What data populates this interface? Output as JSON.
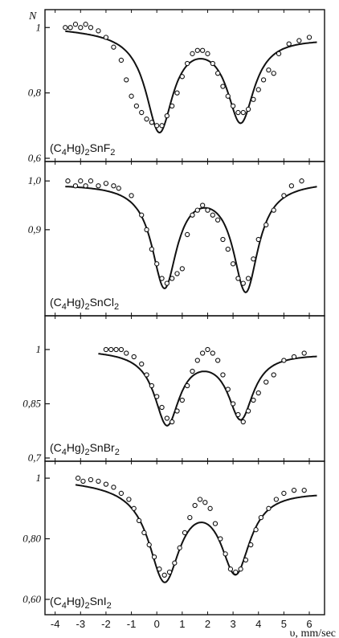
{
  "chart_data": {
    "type": "scatter",
    "ylabel": "N",
    "xlabel": "υ, mm/sec",
    "xlim": [
      -4.4,
      6.6
    ],
    "x_ticks": [
      -4,
      -3,
      -2,
      -1,
      0,
      1,
      2,
      3,
      4,
      5,
      6
    ],
    "x_tick_labels": [
      "-4",
      "-3",
      "-2",
      "-1",
      "0",
      "1",
      "2",
      "3",
      "4",
      "5",
      "6"
    ],
    "panels": [
      {
        "label": "(C4Hg)2SnF2",
        "formula": {
          "a": "(C",
          "b": "4",
          "c": "Hg)",
          "d": "2",
          "e": "SnF",
          "f": "2"
        },
        "ylim": [
          0.6,
          1.04
        ],
        "y_ticks": [
          1.0,
          0.8,
          0.6
        ],
        "y_tick_labels": [
          "1",
          "0,8",
          "0,6"
        ],
        "baseline": 1.0,
        "dips": [
          {
            "center": 0.1,
            "depth": 0.3,
            "width": 0.65
          },
          {
            "center": 3.3,
            "depth": 0.26,
            "width": 0.65
          }
        ],
        "end_level": 0.97,
        "curve_x_range": [
          -3.6,
          6.3
        ],
        "points": [
          [
            -3.6,
            1.0
          ],
          [
            -3.4,
            1.0
          ],
          [
            -3.2,
            1.01
          ],
          [
            -3.0,
            1.0
          ],
          [
            -2.8,
            1.01
          ],
          [
            -2.6,
            1.0
          ],
          [
            -2.3,
            0.99
          ],
          [
            -2.0,
            0.97
          ],
          [
            -1.7,
            0.94
          ],
          [
            -1.4,
            0.9
          ],
          [
            -1.2,
            0.84
          ],
          [
            -1.0,
            0.79
          ],
          [
            -0.8,
            0.76
          ],
          [
            -0.6,
            0.74
          ],
          [
            -0.4,
            0.72
          ],
          [
            -0.2,
            0.71
          ],
          [
            0.0,
            0.7
          ],
          [
            0.2,
            0.7
          ],
          [
            0.4,
            0.73
          ],
          [
            0.6,
            0.76
          ],
          [
            0.8,
            0.8
          ],
          [
            1.0,
            0.85
          ],
          [
            1.2,
            0.89
          ],
          [
            1.4,
            0.92
          ],
          [
            1.6,
            0.93
          ],
          [
            1.8,
            0.93
          ],
          [
            2.0,
            0.92
          ],
          [
            2.2,
            0.89
          ],
          [
            2.4,
            0.86
          ],
          [
            2.6,
            0.82
          ],
          [
            2.8,
            0.79
          ],
          [
            3.0,
            0.76
          ],
          [
            3.2,
            0.74
          ],
          [
            3.4,
            0.74
          ],
          [
            3.6,
            0.75
          ],
          [
            3.8,
            0.78
          ],
          [
            4.0,
            0.81
          ],
          [
            4.2,
            0.84
          ],
          [
            4.4,
            0.87
          ],
          [
            4.6,
            0.86
          ],
          [
            4.8,
            0.92
          ],
          [
            5.2,
            0.95
          ],
          [
            5.6,
            0.96
          ],
          [
            6.0,
            0.97
          ]
        ]
      },
      {
        "label": "(C4Hg)2SnCl2",
        "formula": {
          "a": "(C",
          "b": "4",
          "c": "Hg)",
          "d": "2",
          "e": "SnCl",
          "f": "2"
        },
        "ylim": [
          0.73,
          1.03
        ],
        "y_ticks": [
          1.0,
          0.9
        ],
        "y_tick_labels": [
          "1,0",
          "0,9"
        ],
        "baseline": 0.995,
        "dips": [
          {
            "center": 0.3,
            "depth": 0.21,
            "width": 0.6
          },
          {
            "center": 3.5,
            "depth": 0.22,
            "width": 0.6
          }
        ],
        "end_level": 1.0,
        "curve_x_range": [
          -3.6,
          6.3
        ],
        "points": [
          [
            -3.5,
            1.0
          ],
          [
            -3.2,
            0.99
          ],
          [
            -3.0,
            1.0
          ],
          [
            -2.8,
            0.99
          ],
          [
            -2.6,
            1.0
          ],
          [
            -2.3,
            0.99
          ],
          [
            -2.0,
            0.995
          ],
          [
            -1.7,
            0.99
          ],
          [
            -1.5,
            0.985
          ],
          [
            -1.0,
            0.97
          ],
          [
            -0.6,
            0.93
          ],
          [
            -0.4,
            0.9
          ],
          [
            -0.2,
            0.86
          ],
          [
            0.0,
            0.83
          ],
          [
            0.2,
            0.8
          ],
          [
            0.4,
            0.79
          ],
          [
            0.6,
            0.8
          ],
          [
            0.8,
            0.81
          ],
          [
            1.0,
            0.82
          ],
          [
            1.2,
            0.89
          ],
          [
            1.4,
            0.93
          ],
          [
            1.6,
            0.94
          ],
          [
            1.8,
            0.95
          ],
          [
            2.0,
            0.94
          ],
          [
            2.2,
            0.93
          ],
          [
            2.4,
            0.92
          ],
          [
            2.6,
            0.88
          ],
          [
            2.8,
            0.86
          ],
          [
            3.0,
            0.83
          ],
          [
            3.2,
            0.8
          ],
          [
            3.4,
            0.79
          ],
          [
            3.6,
            0.8
          ],
          [
            3.8,
            0.84
          ],
          [
            4.0,
            0.88
          ],
          [
            4.3,
            0.91
          ],
          [
            4.6,
            0.94
          ],
          [
            5.0,
            0.97
          ],
          [
            5.3,
            0.99
          ],
          [
            5.7,
            1.0
          ]
        ]
      },
      {
        "label": "(C4Hg)2SnBr2",
        "formula": {
          "a": "(C",
          "b": "4",
          "c": "Hg)",
          "d": "2",
          "e": "SnBr",
          "f": "2"
        },
        "ylim": [
          0.7,
          1.08
        ],
        "y_ticks": [
          1.0,
          0.85,
          0.7
        ],
        "y_tick_labels": [
          "1",
          "0,85",
          "0,7"
        ],
        "baseline": 1.0,
        "dips": [
          {
            "center": 0.4,
            "depth": 0.2,
            "width": 0.6
          },
          {
            "center": 3.3,
            "depth": 0.18,
            "width": 0.6
          }
        ],
        "end_level": 0.99,
        "curve_x_range": [
          -2.3,
          6.3
        ],
        "points": [
          [
            -2.0,
            1.0
          ],
          [
            -1.8,
            1.0
          ],
          [
            -1.6,
            1.0
          ],
          [
            -1.4,
            1.0
          ],
          [
            -1.2,
            0.99
          ],
          [
            -0.9,
            0.98
          ],
          [
            -0.6,
            0.96
          ],
          [
            -0.4,
            0.93
          ],
          [
            -0.2,
            0.9
          ],
          [
            0.0,
            0.87
          ],
          [
            0.2,
            0.84
          ],
          [
            0.4,
            0.81
          ],
          [
            0.6,
            0.8
          ],
          [
            0.8,
            0.83
          ],
          [
            1.0,
            0.86
          ],
          [
            1.2,
            0.9
          ],
          [
            1.4,
            0.94
          ],
          [
            1.6,
            0.97
          ],
          [
            1.8,
            0.99
          ],
          [
            2.0,
            1.0
          ],
          [
            2.2,
            0.99
          ],
          [
            2.4,
            0.97
          ],
          [
            2.6,
            0.93
          ],
          [
            2.8,
            0.89
          ],
          [
            3.0,
            0.85
          ],
          [
            3.2,
            0.82
          ],
          [
            3.4,
            0.8
          ],
          [
            3.6,
            0.83
          ],
          [
            3.8,
            0.86
          ],
          [
            4.0,
            0.88
          ],
          [
            4.3,
            0.91
          ],
          [
            4.6,
            0.93
          ],
          [
            5.0,
            0.97
          ],
          [
            5.4,
            0.98
          ],
          [
            5.8,
            0.99
          ]
        ]
      },
      {
        "label": "(C4Hg)2SnI2",
        "formula": {
          "a": "(C",
          "b": "4",
          "c": "Hg)",
          "d": "2",
          "e": "SnI",
          "f": "2"
        },
        "ylim": [
          0.56,
          1.04
        ],
        "y_ticks": [
          1.0,
          0.8,
          0.6
        ],
        "y_tick_labels": [
          "1",
          "0,80",
          "0,60"
        ],
        "baseline": 0.995,
        "dips": [
          {
            "center": 0.3,
            "depth": 0.31,
            "width": 0.75
          },
          {
            "center": 3.1,
            "depth": 0.27,
            "width": 0.7
          }
        ],
        "end_level": 0.96,
        "curve_x_range": [
          -3.2,
          6.3
        ],
        "points": [
          [
            -3.1,
            1.0
          ],
          [
            -2.9,
            0.99
          ],
          [
            -2.6,
            0.995
          ],
          [
            -2.3,
            0.99
          ],
          [
            -2.0,
            0.98
          ],
          [
            -1.7,
            0.97
          ],
          [
            -1.4,
            0.95
          ],
          [
            -1.1,
            0.93
          ],
          [
            -0.9,
            0.9
          ],
          [
            -0.7,
            0.86
          ],
          [
            -0.5,
            0.82
          ],
          [
            -0.3,
            0.78
          ],
          [
            -0.1,
            0.74
          ],
          [
            0.1,
            0.7
          ],
          [
            0.3,
            0.68
          ],
          [
            0.5,
            0.69
          ],
          [
            0.7,
            0.72
          ],
          [
            0.9,
            0.77
          ],
          [
            1.1,
            0.82
          ],
          [
            1.3,
            0.87
          ],
          [
            1.5,
            0.91
          ],
          [
            1.7,
            0.93
          ],
          [
            1.9,
            0.92
          ],
          [
            2.1,
            0.9
          ],
          [
            2.3,
            0.85
          ],
          [
            2.5,
            0.8
          ],
          [
            2.7,
            0.75
          ],
          [
            2.9,
            0.7
          ],
          [
            3.1,
            0.69
          ],
          [
            3.3,
            0.7
          ],
          [
            3.5,
            0.73
          ],
          [
            3.7,
            0.78
          ],
          [
            3.9,
            0.83
          ],
          [
            4.1,
            0.87
          ],
          [
            4.4,
            0.9
          ],
          [
            4.7,
            0.93
          ],
          [
            5.0,
            0.95
          ],
          [
            5.4,
            0.96
          ],
          [
            5.8,
            0.96
          ]
        ]
      }
    ]
  }
}
